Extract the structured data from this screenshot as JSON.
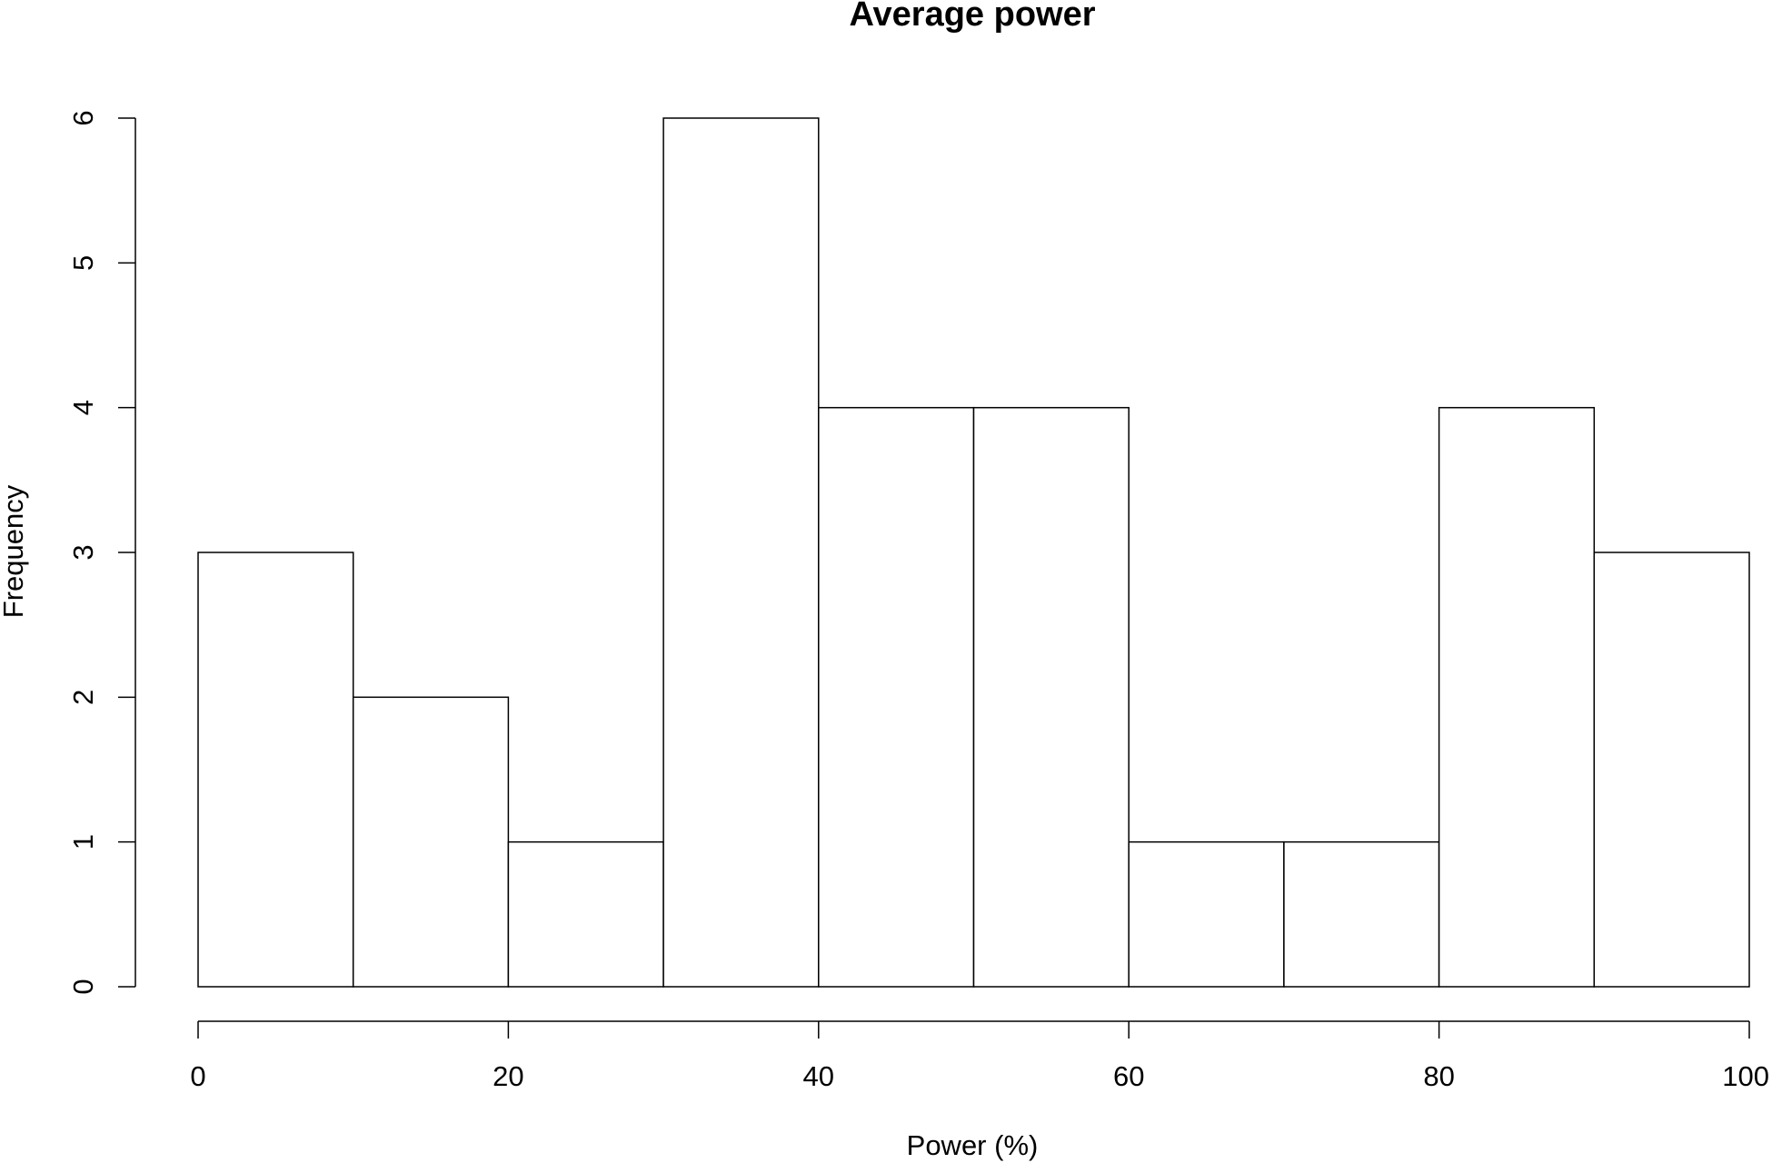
{
  "chart_data": {
    "type": "bar",
    "title": "Average power",
    "xlabel": "Power (%)",
    "ylabel": "Frequency",
    "bins": [
      {
        "start": 0,
        "end": 10,
        "count": 3
      },
      {
        "start": 10,
        "end": 20,
        "count": 2
      },
      {
        "start": 20,
        "end": 30,
        "count": 1
      },
      {
        "start": 30,
        "end": 40,
        "count": 6
      },
      {
        "start": 40,
        "end": 50,
        "count": 4
      },
      {
        "start": 50,
        "end": 60,
        "count": 4
      },
      {
        "start": 60,
        "end": 70,
        "count": 1
      },
      {
        "start": 70,
        "end": 80,
        "count": 1
      },
      {
        "start": 80,
        "end": 90,
        "count": 4
      },
      {
        "start": 90,
        "end": 100,
        "count": 3
      }
    ],
    "xlim": [
      0,
      100
    ],
    "ylim": [
      0,
      6
    ],
    "x_ticks": [
      "0",
      "20",
      "40",
      "60",
      "80",
      "100"
    ],
    "y_ticks": [
      "0",
      "1",
      "2",
      "3",
      "4",
      "5",
      "6"
    ],
    "grid": false,
    "legend": "none"
  }
}
